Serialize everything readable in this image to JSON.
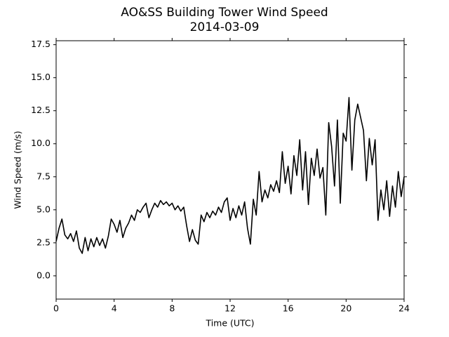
{
  "chart_data": {
    "type": "line",
    "title": "AO&SS Building Tower Wind Speed",
    "subtitle": "2014-03-09",
    "x_label": "Time (UTC)",
    "y_label": "Wind Speed (m/s)",
    "x": [
      0,
      0.2,
      0.4,
      0.6,
      0.8,
      1,
      1.2,
      1.4,
      1.6,
      1.8,
      2,
      2.2,
      2.4,
      2.6,
      2.8,
      3,
      3.2,
      3.4,
      3.6,
      3.8,
      4,
      4.2,
      4.4,
      4.6,
      4.8,
      5,
      5.2,
      5.4,
      5.6,
      5.8,
      6,
      6.2,
      6.4,
      6.6,
      6.8,
      7,
      7.2,
      7.4,
      7.6,
      7.8,
      8,
      8.2,
      8.4,
      8.6,
      8.8,
      9,
      9.2,
      9.4,
      9.6,
      9.8,
      10,
      10.2,
      10.4,
      10.6,
      10.8,
      11,
      11.2,
      11.4,
      11.6,
      11.8,
      12,
      12.2,
      12.4,
      12.6,
      12.8,
      13,
      13.2,
      13.4,
      13.6,
      13.8,
      14,
      14.2,
      14.4,
      14.6,
      14.8,
      15,
      15.2,
      15.4,
      15.6,
      15.8,
      16,
      16.2,
      16.4,
      16.6,
      16.8,
      17,
      17.2,
      17.4,
      17.6,
      17.8,
      18,
      18.2,
      18.4,
      18.6,
      18.8,
      19,
      19.2,
      19.4,
      19.6,
      19.8,
      20,
      20.2,
      20.4,
      20.6,
      20.8,
      21,
      21.2,
      21.4,
      21.6,
      21.8,
      22,
      22.2,
      22.4,
      22.6,
      22.8,
      23,
      23.2,
      23.4,
      23.6,
      23.8,
      24
    ],
    "series": [
      {
        "color": "#000000",
        "values": [
          2.6,
          3.6,
          4.3,
          3.1,
          2.8,
          3.2,
          2.6,
          3.4,
          2.1,
          1.7,
          2.9,
          1.9,
          2.8,
          2.2,
          2.9,
          2.3,
          2.8,
          2.1,
          3.0,
          4.3,
          3.9,
          3.3,
          4.2,
          2.9,
          3.6,
          4.0,
          4.6,
          4.2,
          5.0,
          4.8,
          5.2,
          5.5,
          4.4,
          5.0,
          5.5,
          5.2,
          5.7,
          5.4,
          5.6,
          5.3,
          5.5,
          5.0,
          5.3,
          4.9,
          5.2,
          3.8,
          2.6,
          3.5,
          2.7,
          2.4,
          4.6,
          4.1,
          4.8,
          4.4,
          4.9,
          4.6,
          5.2,
          4.8,
          5.6,
          5.9,
          4.2,
          5.1,
          4.4,
          5.3,
          4.6,
          5.6,
          3.6,
          2.4,
          5.8,
          4.6,
          7.9,
          5.6,
          6.5,
          5.9,
          6.9,
          6.4,
          7.2,
          6.3,
          9.4,
          7.0,
          8.3,
          6.2,
          9.1,
          7.6,
          10.3,
          6.5,
          9.4,
          5.4,
          8.9,
          7.6,
          9.6,
          7.4,
          8.2,
          4.6,
          11.6,
          9.8,
          6.8,
          11.8,
          5.5,
          10.8,
          10.2,
          13.5,
          8.0,
          11.8,
          13.0,
          12.0,
          11.0,
          7.2,
          10.4,
          8.4,
          10.3,
          4.2,
          6.5,
          5.0,
          7.2,
          4.5,
          6.8,
          5.2,
          7.9,
          6.0,
          7.5
        ]
      }
    ],
    "xlim": [
      0,
      24
    ],
    "xticks": [
      0,
      4,
      8,
      12,
      16,
      20,
      24
    ],
    "ylim": [
      -1.76,
      17.8
    ],
    "yticks": [
      {
        "value": 0,
        "label": "0.0"
      },
      2.5,
      {
        "value": 5,
        "label": "5.0"
      },
      7.5,
      {
        "value": 10,
        "label": "10.0"
      },
      12.5,
      {
        "value": 15,
        "label": "15.0"
      },
      17.5
    ],
    "grid": false
  }
}
